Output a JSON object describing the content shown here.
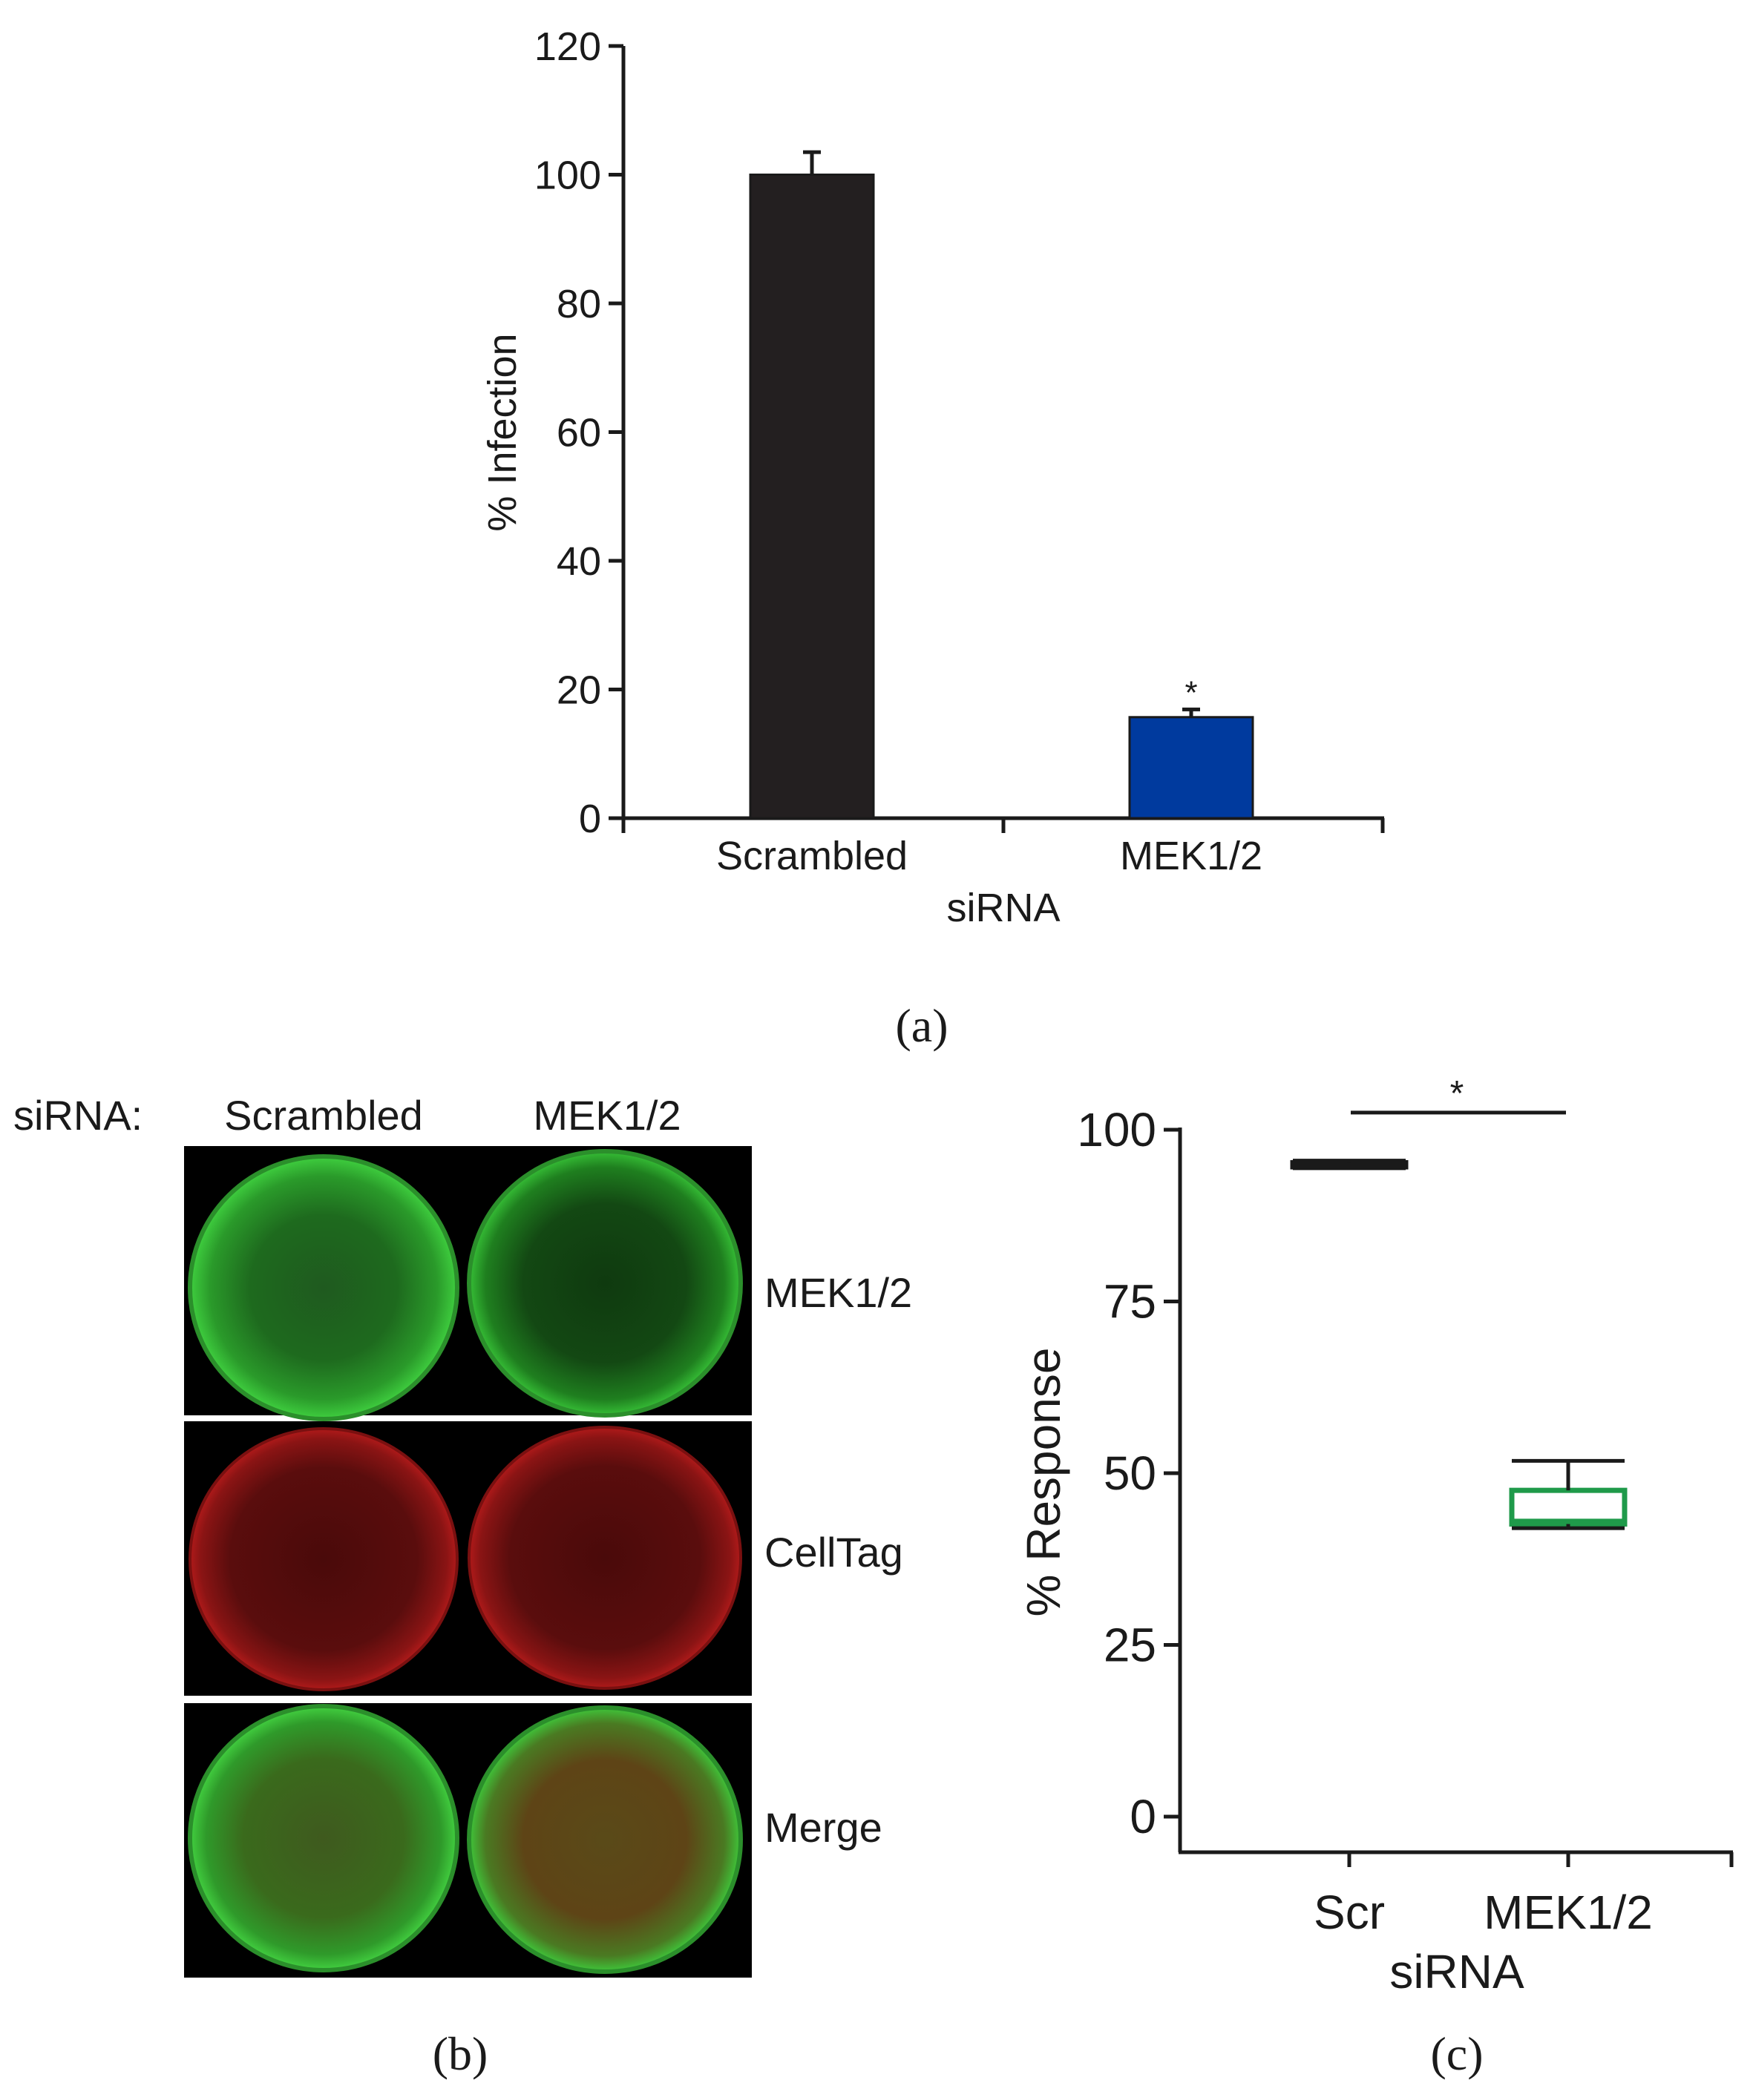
{
  "panel_a": {
    "caption": "(a)",
    "chart_data": {
      "type": "bar",
      "title": "",
      "xlabel": "siRNA",
      "ylabel": "% Infection",
      "categories": [
        "Scrambled",
        "MEK1/2"
      ],
      "values": [
        100,
        15.7
      ],
      "errors": [
        3.5,
        1.2
      ],
      "significance": [
        "",
        "*"
      ],
      "colors": [
        "#231f20",
        "#003a9e"
      ],
      "ylim": [
        0,
        120
      ],
      "yticks": [
        0,
        20,
        40,
        60,
        80,
        100,
        120
      ]
    }
  },
  "panel_b": {
    "caption": "(b)",
    "header_label": "siRNA:",
    "columns": [
      "Scrambled",
      "MEK1/2"
    ],
    "rows": [
      "MEK1/2",
      "CellTag",
      "Merge"
    ]
  },
  "panel_c": {
    "caption": "(c)",
    "chart_data": {
      "type": "box",
      "title": "",
      "xlabel": "siRNA",
      "ylabel": "% Response",
      "categories": [
        "Scr",
        "MEK1/2"
      ],
      "boxes": [
        {
          "min": 94.4,
          "q1": 94.6,
          "median": 94.9,
          "q3": 95.2,
          "max": 95.5
        },
        {
          "min": 42.0,
          "q1": 42.6,
          "median": 43.0,
          "q3": 47.5,
          "max": 51.8
        }
      ],
      "colors": [
        "#1a1a1a",
        "#1f9a4a"
      ],
      "significance": {
        "label": "*",
        "between": [
          "Scr",
          "MEK1/2"
        ],
        "y": 102.5
      },
      "ylim": [
        0,
        100
      ],
      "yticks": [
        0,
        25,
        50,
        75,
        100
      ]
    }
  }
}
